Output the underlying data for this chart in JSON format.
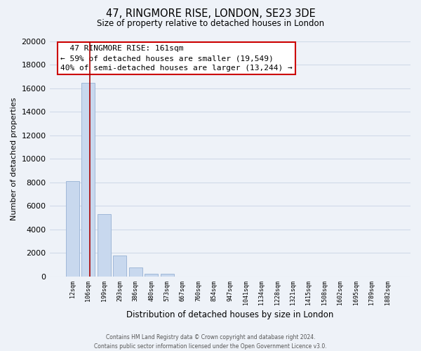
{
  "title": "47, RINGMORE RISE, LONDON, SE23 3DE",
  "subtitle": "Size of property relative to detached houses in London",
  "xlabel": "Distribution of detached houses by size in London",
  "ylabel": "Number of detached properties",
  "bar_labels": [
    "12sqm",
    "106sqm",
    "199sqm",
    "293sqm",
    "386sqm",
    "480sqm",
    "573sqm",
    "667sqm",
    "760sqm",
    "854sqm",
    "947sqm",
    "1041sqm",
    "1134sqm",
    "1228sqm",
    "1321sqm",
    "1415sqm",
    "1508sqm",
    "1602sqm",
    "1695sqm",
    "1789sqm",
    "1882sqm"
  ],
  "bar_values": [
    8100,
    16500,
    5300,
    1800,
    750,
    250,
    200,
    0,
    0,
    0,
    0,
    0,
    0,
    0,
    0,
    0,
    0,
    0,
    0,
    0,
    0
  ],
  "bar_color": "#c8d8ee",
  "bar_edge_color": "#a0b8d8",
  "vline_color": "#aa0000",
  "ylim": [
    0,
    20000
  ],
  "yticks": [
    0,
    2000,
    4000,
    6000,
    8000,
    10000,
    12000,
    14000,
    16000,
    18000,
    20000
  ],
  "annotation_title": "47 RINGMORE RISE: 161sqm",
  "annotation_line1": "← 59% of detached houses are smaller (19,549)",
  "annotation_line2": "40% of semi-detached houses are larger (13,244) →",
  "annotation_box_color": "#ffffff",
  "annotation_box_edge": "#cc0000",
  "footer1": "Contains HM Land Registry data © Crown copyright and database right 2024.",
  "footer2": "Contains public sector information licensed under the Open Government Licence v3.0.",
  "bg_color": "#eef2f8",
  "grid_color": "#d0dae8"
}
